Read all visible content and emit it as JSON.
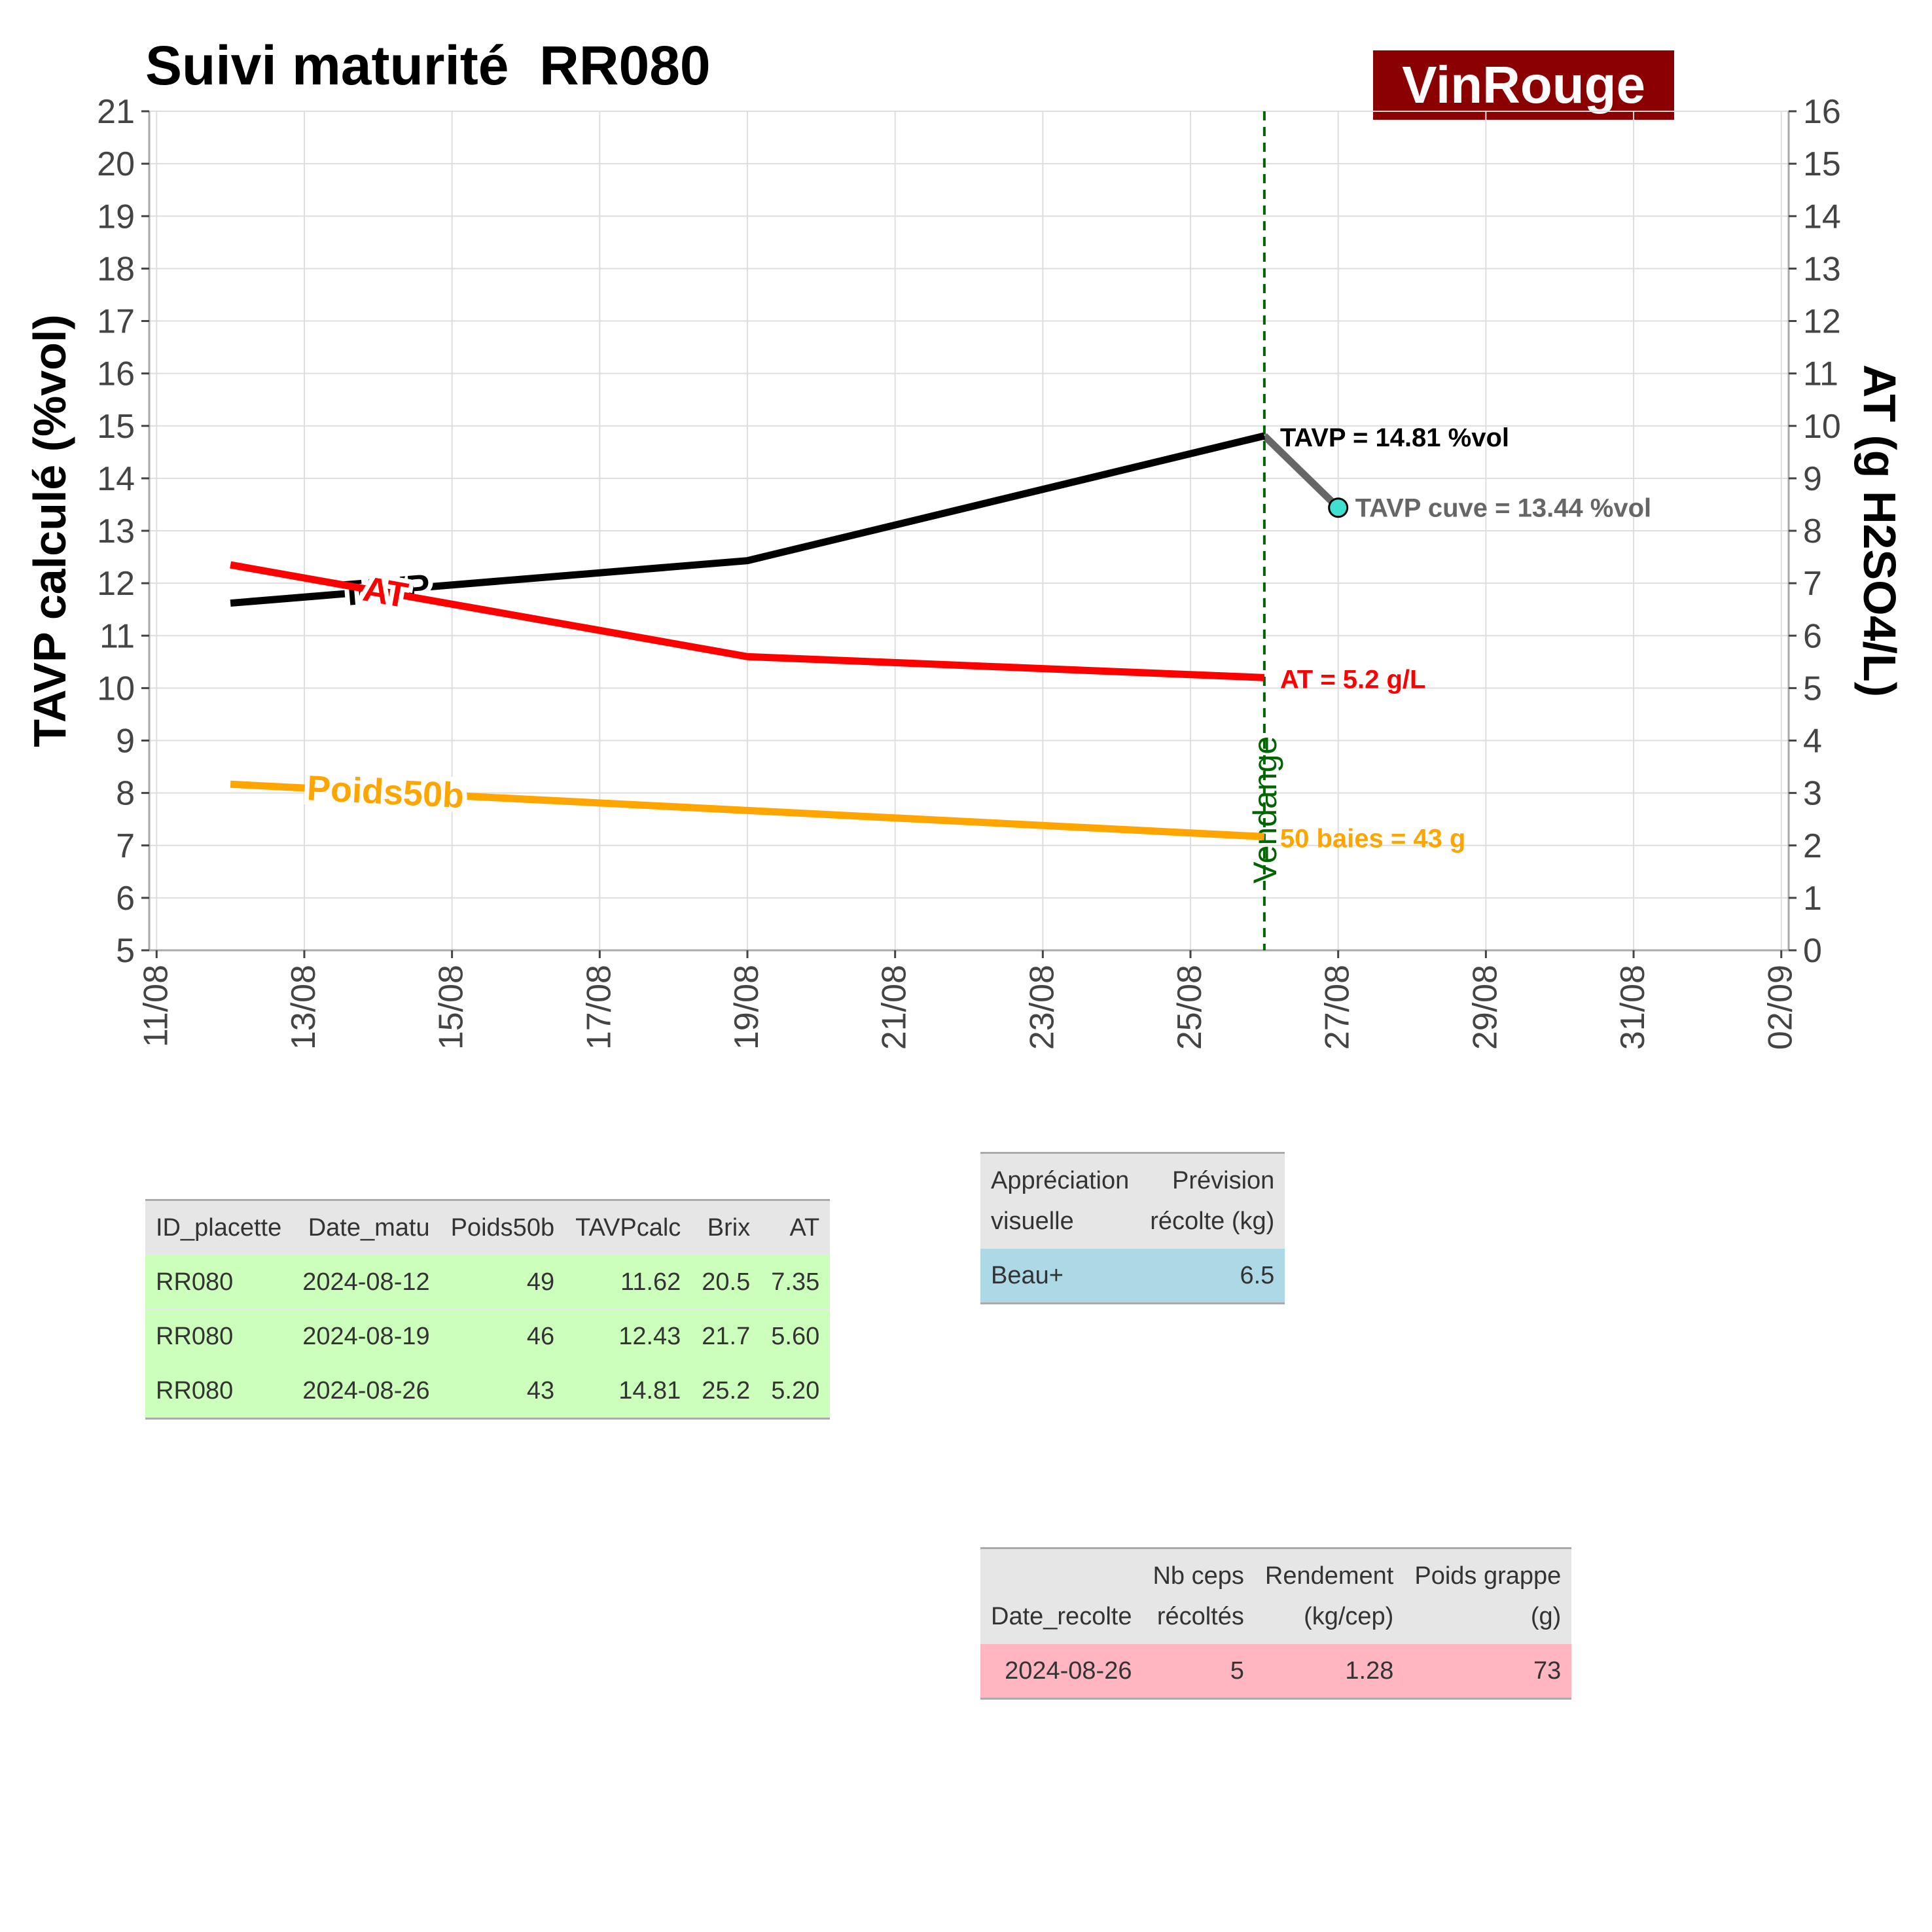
{
  "header": {
    "title": "Suivi maturité  RR080",
    "brand": "VinRouge"
  },
  "chart_data": {
    "type": "line",
    "x_ticks": [
      "11/08",
      "13/08",
      "15/08",
      "17/08",
      "19/08",
      "21/08",
      "23/08",
      "25/08",
      "27/08",
      "29/08",
      "31/08",
      "02/09"
    ],
    "x_range": [
      "2024-08-11",
      "2024-09-02"
    ],
    "y_left": {
      "label": "TAVP calculé (%vol)",
      "range": [
        5,
        21
      ],
      "ticks": [
        5,
        6,
        7,
        8,
        9,
        10,
        11,
        12,
        13,
        14,
        15,
        16,
        17,
        18,
        19,
        20,
        21
      ]
    },
    "y_right": {
      "label": "AT (g H2SO4/L)",
      "range": [
        0,
        16
      ],
      "ticks": [
        0,
        1,
        2,
        3,
        4,
        5,
        6,
        7,
        8,
        9,
        10,
        11,
        12,
        13,
        14,
        15,
        16
      ]
    },
    "dates": [
      "2024-08-12",
      "2024-08-19",
      "2024-08-26"
    ],
    "series": [
      {
        "name": "TAVP",
        "axis": "left",
        "color": "#000000",
        "values": [
          11.62,
          12.43,
          14.81
        ],
        "line_label": "TAVP",
        "end_label": "TAVP = 14.81 %vol"
      },
      {
        "name": "AT",
        "axis": "right",
        "color": "#ff0000",
        "values": [
          7.35,
          5.6,
          5.2
        ],
        "line_label": "AT",
        "end_label": "AT = 5.2 g/L"
      },
      {
        "name": "Poids50b",
        "axis": "left_scaled",
        "scale_divisor": 6,
        "color": "#ffa500",
        "values": [
          49,
          46,
          43
        ],
        "line_label": "Poids50b",
        "end_label": "50 baies = 43 g"
      }
    ],
    "cuve": {
      "from_date": "2024-08-26",
      "from_value": 14.81,
      "date": "2024-08-27",
      "value": 13.44,
      "color": "#666666",
      "point_color": "#40e0d0",
      "label": "TAVP cuve = 13.44 %vol"
    },
    "vendange": {
      "date": "2024-08-26",
      "label": "Vendange",
      "color": "#006400"
    }
  },
  "tables": {
    "maturite": {
      "headers": [
        "ID_placette",
        "Date_matu",
        "Poids50b",
        "TAVPcalc",
        "Brix",
        "AT"
      ],
      "rows": [
        [
          "RR080",
          "2024-08-12",
          "49",
          "11.62",
          "20.5",
          "7.35"
        ],
        [
          "RR080",
          "2024-08-19",
          "46",
          "12.43",
          "21.7",
          "5.60"
        ],
        [
          "RR080",
          "2024-08-26",
          "43",
          "14.81",
          "25.2",
          "5.20"
        ]
      ]
    },
    "appreciation": {
      "headers": [
        [
          "Appréciation",
          "visuelle"
        ],
        [
          "Prévision",
          "récolte (kg)"
        ]
      ],
      "rows": [
        [
          "Beau+",
          "6.5"
        ]
      ]
    },
    "recolte": {
      "headers": [
        [
          "",
          "Date_recolte"
        ],
        [
          "Nb ceps",
          "récoltés"
        ],
        [
          "Rendement",
          "(kg/cep)"
        ],
        [
          "Poids grappe",
          "(g)"
        ]
      ],
      "rows": [
        [
          "2024-08-26",
          "5",
          "1.28",
          "73"
        ]
      ]
    }
  }
}
